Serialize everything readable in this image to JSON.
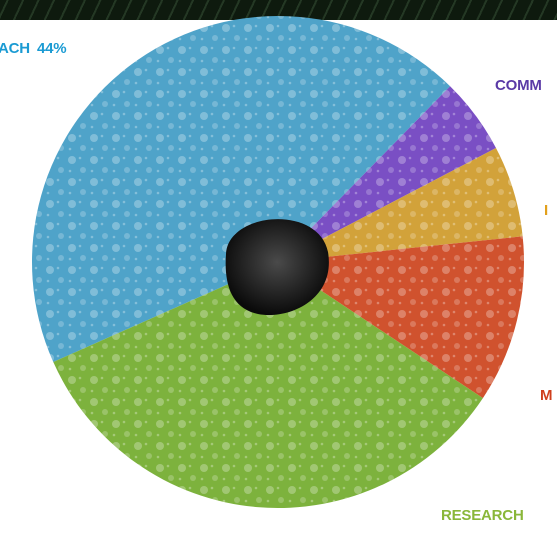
{
  "chart_data": {
    "type": "pie",
    "categories": [
      "ACH",
      "COMM",
      "I",
      "M",
      "RESEARCH"
    ],
    "values": [
      44,
      5,
      6,
      11,
      34
    ],
    "value_labels": [
      "44%",
      null,
      null,
      null,
      null
    ],
    "colors": [
      "#4fa3c9",
      "#7a4fc4",
      "#d2a23a",
      "#d0522e",
      "#7db23d"
    ],
    "label_colors": [
      "#1b9bd3",
      "#5a3aa6",
      "#e2a01c",
      "#cf3f1d",
      "#8ab73a"
    ]
  }
}
